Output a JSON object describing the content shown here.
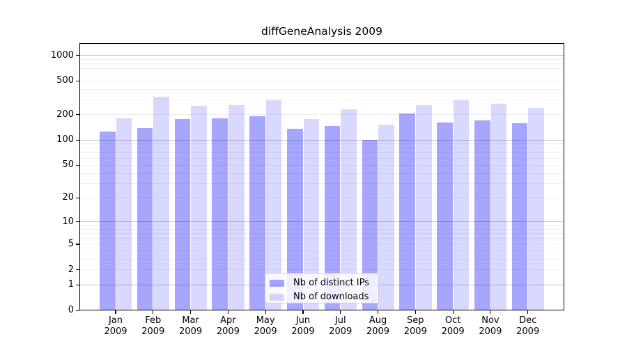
{
  "figure": {
    "background": "#ffffff",
    "plot_background": "#ffffff",
    "spine_color": "#000000"
  },
  "chart_data": {
    "type": "bar",
    "title": "diffGeneAnalysis 2009",
    "xlabel": "",
    "ylabel": "",
    "categories": [
      "Jan 2009",
      "Feb 2009",
      "Mar 2009",
      "Apr 2009",
      "May 2009",
      "Jun 2009",
      "Jul 2009",
      "Aug 2009",
      "Sep 2009",
      "Oct 2009",
      "Nov 2009",
      "Dec 2009"
    ],
    "series": [
      {
        "name": "Nb of distinct IPs",
        "color": "rgba(0,0,255,0.35)",
        "values": [
          125,
          138,
          175,
          178,
          190,
          135,
          145,
          100,
          205,
          160,
          170,
          158
        ]
      },
      {
        "name": "Nb of downloads",
        "color": "rgba(0,0,255,0.15)",
        "values": [
          180,
          325,
          250,
          255,
          295,
          175,
          230,
          150,
          255,
          295,
          265,
          240
        ]
      }
    ],
    "yscale": "log1p",
    "ylim": [
      0,
      1380
    ],
    "y_tick_labels": [
      "1000",
      "500",
      "200",
      "100",
      "50",
      "20",
      "10",
      "5",
      "2",
      "1",
      "0"
    ],
    "y_tick_values": [
      1000,
      500,
      200,
      100,
      50,
      20,
      10,
      5,
      2,
      1,
      0
    ],
    "grid": {
      "orientation": "horizontal",
      "major_at": [
        1,
        10,
        100,
        1000
      ],
      "minor": "2-9 multiples per decade",
      "major_color": "#c4c4c4",
      "minor_color": "#efefef"
    },
    "legend": {
      "position": "inside-lower-center",
      "entries": [
        "Nb of distinct IPs",
        "Nb of downloads"
      ]
    }
  }
}
